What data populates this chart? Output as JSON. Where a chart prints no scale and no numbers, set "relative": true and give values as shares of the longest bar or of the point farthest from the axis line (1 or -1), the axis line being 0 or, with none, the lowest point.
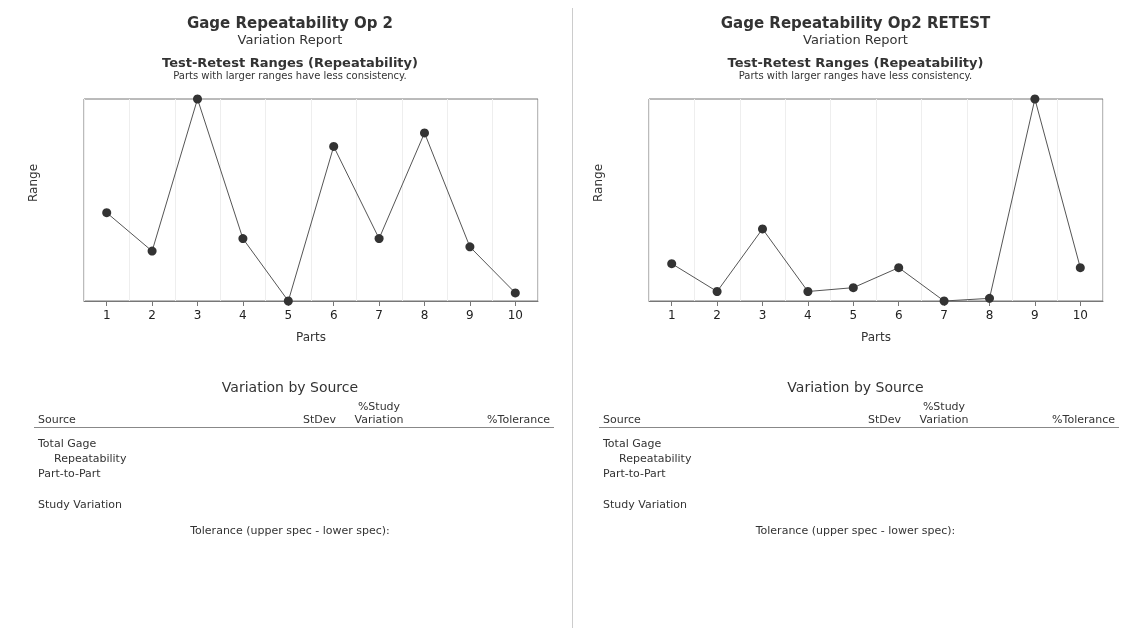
{
  "chart_data": [
    {
      "type": "line",
      "title": "Test-Retest Ranges (Repeatability)",
      "subtitle": "Parts with larger ranges have less consistency.",
      "xlabel": "Parts",
      "ylabel": "Range",
      "categories": [
        "1",
        "2",
        "3",
        "4",
        "5",
        "6",
        "7",
        "8",
        "9",
        "10"
      ],
      "relative": true,
      "series": [
        {
          "color": "#333333",
          "values": [
            0.437,
            0.247,
            1,
            0.309,
            0,
            0.765,
            0.309,
            0.832,
            0.268,
            0.04
          ]
        }
      ],
      "marker": "circle",
      "line_style": "solid",
      "grid": true,
      "annotations": [
        "Gage Repeatability Op 2",
        "Variation Report",
        "Variation by Source",
        "Source",
        "StDev",
        "%Study Variation",
        "%Tolerance",
        "Total Gage",
        "Repeatability",
        "Part-to-Part",
        "Study Variation",
        "Tolerance (upper spec - lower spec):"
      ]
    },
    {
      "type": "line",
      "title": "Test-Retest Ranges (Repeatability)",
      "subtitle": "Parts with larger ranges have less consistency.",
      "xlabel": "Parts",
      "ylabel": "Range",
      "categories": [
        "1",
        "2",
        "3",
        "4",
        "5",
        "6",
        "7",
        "8",
        "9",
        "10"
      ],
      "relative": true,
      "series": [
        {
          "color": "#333333",
          "values": [
            0.185,
            0.047,
            0.357,
            0.047,
            0.066,
            0.165,
            0,
            0.013,
            1,
            0.165
          ]
        }
      ],
      "marker": "circle",
      "line_style": "solid",
      "grid": true,
      "annotations": [
        "Gage Repeatability Op2 RETEST",
        "Variation Report",
        "Variation by Source",
        "Source",
        "StDev",
        "%Study Variation",
        "%Tolerance",
        "Total Gage",
        "Repeatability",
        "Part-to-Part",
        "Study Variation",
        "Tolerance (upper spec - lower spec):"
      ]
    }
  ]
}
